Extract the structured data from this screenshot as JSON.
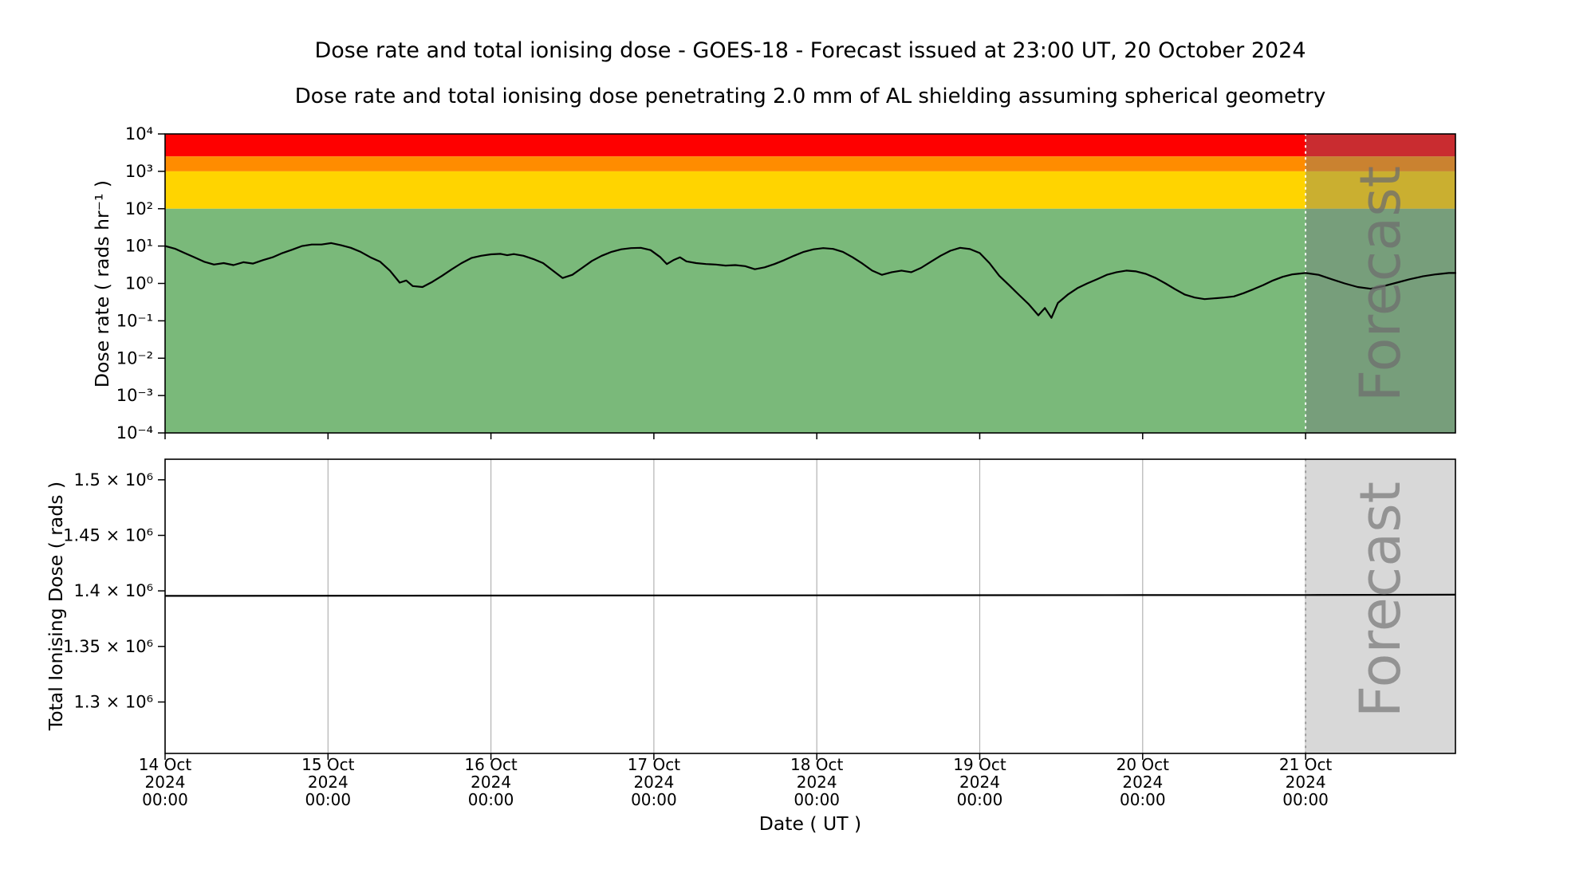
{
  "title": "Dose rate and total ionising dose - GOES-18 - Forecast issued at 23:00 UT, 20 October 2024",
  "subtitle": "Dose rate and total ionising dose penetrating 2.0 mm of AL shielding assuming spherical geometry",
  "forecast": {
    "label": "Forecast"
  },
  "x_axis": {
    "label": "Date ( UT )",
    "x_max_day": 7.92,
    "forecast_start_day": 7.0,
    "tick_days": [
      0,
      1,
      2,
      3,
      4,
      5,
      6,
      7
    ],
    "tick_labels": [
      [
        "14 Oct",
        "2024",
        "00:00"
      ],
      [
        "15 Oct",
        "2024",
        "00:00"
      ],
      [
        "16 Oct",
        "2024",
        "00:00"
      ],
      [
        "17 Oct",
        "2024",
        "00:00"
      ],
      [
        "18 Oct",
        "2024",
        "00:00"
      ],
      [
        "19 Oct",
        "2024",
        "00:00"
      ],
      [
        "20 Oct",
        "2024",
        "00:00"
      ],
      [
        "21 Oct",
        "2024",
        "00:00"
      ]
    ]
  },
  "colors": {
    "band_red": "#fe0000",
    "band_orange": "#ff8c00",
    "band_yellow": "#ffd400",
    "band_green": "#7ab97a",
    "forecast_overlay": "rgba(115,115,125,0.38)",
    "forecast_fill_bottom": "#d8d8d8",
    "forecast_text_top": "#6e6e6e",
    "forecast_text_bottom": "#8c8c8c",
    "grid": "#b3b3b3",
    "line": "#000000",
    "boundary_top": "#ffffff",
    "boundary_bottom": "#9a9a9a",
    "spine": "#000000"
  },
  "chart_data": [
    {
      "name": "dose_rate_panel",
      "type": "line",
      "yscale": "log",
      "ylabel": "Dose rate ( rads hr⁻¹ )",
      "ylim": [
        0.0001,
        10000
      ],
      "grid": false,
      "yticks": [
        {
          "value": 10000,
          "label": "10⁴"
        },
        {
          "value": 1000,
          "label": "10³"
        },
        {
          "value": 100,
          "label": "10²"
        },
        {
          "value": 10,
          "label": "10¹"
        },
        {
          "value": 1,
          "label": "10⁰"
        },
        {
          "value": 0.1,
          "label": "10⁻¹"
        },
        {
          "value": 0.01,
          "label": "10⁻²"
        },
        {
          "value": 0.001,
          "label": "10⁻³"
        },
        {
          "value": 0.0001,
          "label": "10⁻⁴"
        }
      ],
      "bands": [
        {
          "name": "red",
          "from": 2500,
          "to": 10000,
          "color": "#fe0000"
        },
        {
          "name": "orange",
          "from": 1000,
          "to": 2500,
          "color": "#ff8c00"
        },
        {
          "name": "yellow",
          "from": 100,
          "to": 1000,
          "color": "#ffd400"
        },
        {
          "name": "green",
          "from": 0.0001,
          "to": 100,
          "color": "#7ab97a"
        }
      ],
      "series": [
        {
          "name": "dose_rate_rads_per_hr",
          "color": "#000000",
          "x_units": "days from 14 Oct 2024 00:00 UT",
          "points": [
            [
              0.0,
              10.0
            ],
            [
              0.06,
              8.5
            ],
            [
              0.12,
              6.5
            ],
            [
              0.18,
              5.0
            ],
            [
              0.24,
              3.8
            ],
            [
              0.3,
              3.2
            ],
            [
              0.36,
              3.5
            ],
            [
              0.42,
              3.1
            ],
            [
              0.48,
              3.7
            ],
            [
              0.54,
              3.4
            ],
            [
              0.6,
              4.2
            ],
            [
              0.66,
              5.0
            ],
            [
              0.72,
              6.5
            ],
            [
              0.78,
              8.0
            ],
            [
              0.84,
              10.0
            ],
            [
              0.9,
              11.0
            ],
            [
              0.96,
              11.0
            ],
            [
              1.02,
              12.0
            ],
            [
              1.08,
              10.5
            ],
            [
              1.14,
              9.0
            ],
            [
              1.2,
              7.0
            ],
            [
              1.26,
              5.0
            ],
            [
              1.32,
              3.8
            ],
            [
              1.38,
              2.2
            ],
            [
              1.44,
              1.05
            ],
            [
              1.48,
              1.2
            ],
            [
              1.52,
              0.85
            ],
            [
              1.58,
              0.8
            ],
            [
              1.64,
              1.1
            ],
            [
              1.7,
              1.6
            ],
            [
              1.76,
              2.4
            ],
            [
              1.82,
              3.5
            ],
            [
              1.88,
              4.8
            ],
            [
              1.94,
              5.5
            ],
            [
              2.0,
              6.0
            ],
            [
              2.06,
              6.2
            ],
            [
              2.1,
              5.7
            ],
            [
              2.14,
              6.1
            ],
            [
              2.2,
              5.5
            ],
            [
              2.26,
              4.5
            ],
            [
              2.32,
              3.5
            ],
            [
              2.38,
              2.2
            ],
            [
              2.44,
              1.4
            ],
            [
              2.5,
              1.7
            ],
            [
              2.56,
              2.6
            ],
            [
              2.62,
              4.0
            ],
            [
              2.68,
              5.5
            ],
            [
              2.74,
              7.0
            ],
            [
              2.8,
              8.2
            ],
            [
              2.86,
              8.8
            ],
            [
              2.92,
              9.0
            ],
            [
              2.98,
              7.8
            ],
            [
              3.04,
              5.0
            ],
            [
              3.08,
              3.3
            ],
            [
              3.12,
              4.2
            ],
            [
              3.16,
              5.0
            ],
            [
              3.2,
              3.9
            ],
            [
              3.26,
              3.5
            ],
            [
              3.32,
              3.3
            ],
            [
              3.38,
              3.2
            ],
            [
              3.44,
              3.0
            ],
            [
              3.5,
              3.1
            ],
            [
              3.56,
              2.9
            ],
            [
              3.62,
              2.4
            ],
            [
              3.68,
              2.7
            ],
            [
              3.74,
              3.3
            ],
            [
              3.8,
              4.2
            ],
            [
              3.86,
              5.5
            ],
            [
              3.92,
              7.0
            ],
            [
              3.98,
              8.2
            ],
            [
              4.04,
              8.8
            ],
            [
              4.1,
              8.4
            ],
            [
              4.16,
              7.0
            ],
            [
              4.22,
              5.0
            ],
            [
              4.28,
              3.4
            ],
            [
              4.34,
              2.2
            ],
            [
              4.4,
              1.7
            ],
            [
              4.46,
              2.0
            ],
            [
              4.52,
              2.2
            ],
            [
              4.58,
              2.0
            ],
            [
              4.64,
              2.6
            ],
            [
              4.7,
              3.8
            ],
            [
              4.76,
              5.5
            ],
            [
              4.82,
              7.5
            ],
            [
              4.88,
              9.0
            ],
            [
              4.94,
              8.3
            ],
            [
              5.0,
              6.5
            ],
            [
              5.06,
              3.5
            ],
            [
              5.12,
              1.6
            ],
            [
              5.18,
              0.9
            ],
            [
              5.24,
              0.5
            ],
            [
              5.3,
              0.28
            ],
            [
              5.36,
              0.14
            ],
            [
              5.4,
              0.22
            ],
            [
              5.44,
              0.12
            ],
            [
              5.48,
              0.3
            ],
            [
              5.54,
              0.5
            ],
            [
              5.6,
              0.75
            ],
            [
              5.66,
              1.0
            ],
            [
              5.72,
              1.3
            ],
            [
              5.78,
              1.7
            ],
            [
              5.84,
              2.0
            ],
            [
              5.9,
              2.2
            ],
            [
              5.96,
              2.1
            ],
            [
              6.02,
              1.8
            ],
            [
              6.08,
              1.4
            ],
            [
              6.14,
              1.0
            ],
            [
              6.2,
              0.7
            ],
            [
              6.26,
              0.5
            ],
            [
              6.32,
              0.42
            ],
            [
              6.38,
              0.38
            ],
            [
              6.44,
              0.4
            ],
            [
              6.5,
              0.42
            ],
            [
              6.56,
              0.45
            ],
            [
              6.62,
              0.55
            ],
            [
              6.68,
              0.7
            ],
            [
              6.74,
              0.9
            ],
            [
              6.8,
              1.2
            ],
            [
              6.86,
              1.5
            ],
            [
              6.92,
              1.75
            ],
            [
              7.0,
              1.9
            ],
            [
              7.08,
              1.7
            ],
            [
              7.16,
              1.3
            ],
            [
              7.24,
              1.0
            ],
            [
              7.32,
              0.8
            ],
            [
              7.4,
              0.72
            ],
            [
              7.48,
              0.85
            ],
            [
              7.56,
              1.05
            ],
            [
              7.64,
              1.3
            ],
            [
              7.72,
              1.55
            ],
            [
              7.8,
              1.75
            ],
            [
              7.88,
              1.9
            ],
            [
              7.92,
              1.9
            ]
          ]
        }
      ]
    },
    {
      "name": "total_dose_panel",
      "type": "line",
      "yscale": "linear",
      "ylabel": "Total Ionising Dose ( rads )",
      "ylim": [
        1253700,
        1518500
      ],
      "grid": "vertical",
      "yticks": [
        {
          "value": 1500000,
          "label": "1.5 × 10⁶"
        },
        {
          "value": 1450000,
          "label": "1.45 × 10⁶"
        },
        {
          "value": 1400000,
          "label": "1.4 × 10⁶"
        },
        {
          "value": 1350000,
          "label": "1.35 × 10⁶"
        },
        {
          "value": 1300000,
          "label": "1.3 × 10⁶"
        }
      ],
      "series": [
        {
          "name": "total_ionising_dose_rads",
          "color": "#000000",
          "x_units": "days from 14 Oct 2024 00:00 UT",
          "points": [
            [
              0.0,
              1395500
            ],
            [
              2.0,
              1395800
            ],
            [
              4.0,
              1396000
            ],
            [
              6.0,
              1396200
            ],
            [
              7.0,
              1396300
            ],
            [
              7.92,
              1396600
            ]
          ]
        }
      ]
    }
  ]
}
